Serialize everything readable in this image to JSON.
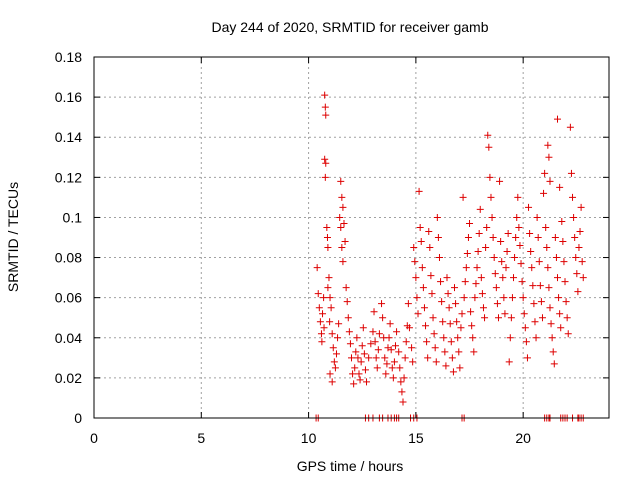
{
  "chart_data": {
    "type": "scatter",
    "title": "Day 244 of 2020, SRMTID for receiver gamb",
    "xlabel": "GPS time / hours",
    "ylabel": "SRMTID / TECUs",
    "xlim": [
      0,
      24
    ],
    "ylim": [
      0,
      0.18
    ],
    "grid": true,
    "marker": "+",
    "color": "#dd0000",
    "xticks": [
      0,
      5,
      10,
      15,
      20
    ],
    "xtick_labels": [
      "0",
      "5",
      "10",
      "15",
      "20"
    ],
    "yticks": [
      0,
      0.02,
      0.04,
      0.06,
      0.08,
      0.1,
      0.12,
      0.14,
      0.16,
      0.18
    ],
    "ytick_labels": [
      "0",
      "0.02",
      "0.04",
      "0.06",
      "0.08",
      "0.1",
      "0.12",
      "0.14",
      "0.16",
      "0.18"
    ],
    "series": [
      {
        "name": "SRMTID",
        "points": [
          [
            10.4,
            0.075
          ],
          [
            10.45,
            0.062
          ],
          [
            10.5,
            0.055
          ],
          [
            10.55,
            0.048
          ],
          [
            10.6,
            0.042
          ],
          [
            10.62,
            0.038
          ],
          [
            10.65,
            0.052
          ],
          [
            10.7,
            0.06
          ],
          [
            10.72,
            0.045
          ],
          [
            10.75,
            0.161
          ],
          [
            10.78,
            0.155
          ],
          [
            10.8,
            0.151
          ],
          [
            10.75,
            0.129
          ],
          [
            10.8,
            0.127
          ],
          [
            10.78,
            0.12
          ],
          [
            10.85,
            0.095
          ],
          [
            10.88,
            0.09
          ],
          [
            10.9,
            0.085
          ],
          [
            10.95,
            0.07
          ],
          [
            10.9,
            0.065
          ],
          [
            11.0,
            0.06
          ],
          [
            11.05,
            0.055
          ],
          [
            10.98,
            0.048
          ],
          [
            11.1,
            0.042
          ],
          [
            11.15,
            0.035
          ],
          [
            11.2,
            0.028
          ],
          [
            11.0,
            0.022
          ],
          [
            11.1,
            0.018
          ],
          [
            11.25,
            0.025
          ],
          [
            11.3,
            0.032
          ],
          [
            11.35,
            0.04
          ],
          [
            11.4,
            0.047
          ],
          [
            11.45,
            0.1
          ],
          [
            11.5,
            0.095
          ],
          [
            11.55,
            0.085
          ],
          [
            11.6,
            0.078
          ],
          [
            11.5,
            0.118
          ],
          [
            11.55,
            0.11
          ],
          [
            11.6,
            0.105
          ],
          [
            11.65,
            0.097
          ],
          [
            11.7,
            0.088
          ],
          [
            11.75,
            0.065
          ],
          [
            11.8,
            0.058
          ],
          [
            11.85,
            0.05
          ],
          [
            11.9,
            0.043
          ],
          [
            11.95,
            0.037
          ],
          [
            12.0,
            0.03
          ],
          [
            12.05,
            0.022
          ],
          [
            12.1,
            0.017
          ],
          [
            12.15,
            0.025
          ],
          [
            12.2,
            0.033
          ],
          [
            12.25,
            0.04
          ],
          [
            12.3,
            0.03
          ],
          [
            12.35,
            0.022
          ],
          [
            12.4,
            0.019
          ],
          [
            12.45,
            0.028
          ],
          [
            12.5,
            0.036
          ],
          [
            12.55,
            0.045
          ],
          [
            12.6,
            0.032
          ],
          [
            12.65,
            0.024
          ],
          [
            12.7,
            0.018
          ],
          [
            12.8,
            0.03
          ],
          [
            12.9,
            0.037
          ],
          [
            13.0,
            0.043
          ],
          [
            13.05,
            0.053
          ],
          [
            13.1,
            0.038
          ],
          [
            13.15,
            0.03
          ],
          [
            13.2,
            0.025
          ],
          [
            13.25,
            0.034
          ],
          [
            13.3,
            0.042
          ],
          [
            13.4,
            0.057
          ],
          [
            13.45,
            0.05
          ],
          [
            13.5,
            0.04
          ],
          [
            13.55,
            0.03
          ],
          [
            13.6,
            0.022
          ],
          [
            13.65,
            0.027
          ],
          [
            13.7,
            0.035
          ],
          [
            13.75,
            0.04
          ],
          [
            13.8,
            0.047
          ],
          [
            13.85,
            0.034
          ],
          [
            13.9,
            0.025
          ],
          [
            13.95,
            0.02
          ],
          [
            14.0,
            0.028
          ],
          [
            14.05,
            0.036
          ],
          [
            14.1,
            0.043
          ],
          [
            14.2,
            0.033
          ],
          [
            14.25,
            0.025
          ],
          [
            14.3,
            0.018
          ],
          [
            14.35,
            0.013
          ],
          [
            14.4,
            0.008
          ],
          [
            14.45,
            0.02
          ],
          [
            14.5,
            0.03
          ],
          [
            14.55,
            0.038
          ],
          [
            14.6,
            0.046
          ],
          [
            14.65,
            0.057
          ],
          [
            14.7,
            0.045
          ],
          [
            14.8,
            0.035
          ],
          [
            14.85,
            0.028
          ],
          [
            14.9,
            0.085
          ],
          [
            14.95,
            0.078
          ],
          [
            15.0,
            0.07
          ],
          [
            15.05,
            0.06
          ],
          [
            15.1,
            0.052
          ],
          [
            15.15,
            0.113
          ],
          [
            15.2,
            0.095
          ],
          [
            15.25,
            0.088
          ],
          [
            15.3,
            0.075
          ],
          [
            15.35,
            0.065
          ],
          [
            15.4,
            0.055
          ],
          [
            15.45,
            0.046
          ],
          [
            15.5,
            0.038
          ],
          [
            15.55,
            0.03
          ],
          [
            15.6,
            0.093
          ],
          [
            15.65,
            0.085
          ],
          [
            15.7,
            0.071
          ],
          [
            15.75,
            0.062
          ],
          [
            15.8,
            0.05
          ],
          [
            15.85,
            0.042
          ],
          [
            15.9,
            0.035
          ],
          [
            15.95,
            0.028
          ],
          [
            16.0,
            0.1
          ],
          [
            16.05,
            0.09
          ],
          [
            16.1,
            0.08
          ],
          [
            16.15,
            0.068
          ],
          [
            16.2,
            0.058
          ],
          [
            16.25,
            0.048
          ],
          [
            16.3,
            0.04
          ],
          [
            16.35,
            0.033
          ],
          [
            16.4,
            0.026
          ],
          [
            16.45,
            0.07
          ],
          [
            16.5,
            0.062
          ],
          [
            16.55,
            0.055
          ],
          [
            16.6,
            0.047
          ],
          [
            16.65,
            0.038
          ],
          [
            16.7,
            0.03
          ],
          [
            16.75,
            0.023
          ],
          [
            16.8,
            0.065
          ],
          [
            16.85,
            0.057
          ],
          [
            16.9,
            0.048
          ],
          [
            16.95,
            0.04
          ],
          [
            17.0,
            0.033
          ],
          [
            17.05,
            0.025
          ],
          [
            17.1,
            0.045
          ],
          [
            17.15,
            0.052
          ],
          [
            17.2,
            0.11
          ],
          [
            17.25,
            0.06
          ],
          [
            17.3,
            0.068
          ],
          [
            17.35,
            0.075
          ],
          [
            17.4,
            0.082
          ],
          [
            17.45,
            0.09
          ],
          [
            17.5,
            0.097
          ],
          [
            17.55,
            0.053
          ],
          [
            17.6,
            0.046
          ],
          [
            17.65,
            0.04
          ],
          [
            17.7,
            0.033
          ],
          [
            17.75,
            0.06
          ],
          [
            17.8,
            0.067
          ],
          [
            17.85,
            0.075
          ],
          [
            17.9,
            0.083
          ],
          [
            17.95,
            0.092
          ],
          [
            18.0,
            0.104
          ],
          [
            18.05,
            0.07
          ],
          [
            18.1,
            0.062
          ],
          [
            18.15,
            0.055
          ],
          [
            18.2,
            0.05
          ],
          [
            18.25,
            0.085
          ],
          [
            18.3,
            0.095
          ],
          [
            18.35,
            0.141
          ],
          [
            18.4,
            0.135
          ],
          [
            18.45,
            0.12
          ],
          [
            18.5,
            0.11
          ],
          [
            18.55,
            0.1
          ],
          [
            18.6,
            0.09
          ],
          [
            18.65,
            0.08
          ],
          [
            18.7,
            0.072
          ],
          [
            18.75,
            0.065
          ],
          [
            18.8,
            0.057
          ],
          [
            18.85,
            0.05
          ],
          [
            18.9,
            0.118
          ],
          [
            18.95,
            0.088
          ],
          [
            19.0,
            0.078
          ],
          [
            19.05,
            0.07
          ],
          [
            19.1,
            0.06
          ],
          [
            19.15,
            0.052
          ],
          [
            19.2,
            0.075
          ],
          [
            19.25,
            0.083
          ],
          [
            19.3,
            0.092
          ],
          [
            19.35,
            0.028
          ],
          [
            19.4,
            0.04
          ],
          [
            19.45,
            0.05
          ],
          [
            19.5,
            0.06
          ],
          [
            19.55,
            0.07
          ],
          [
            19.6,
            0.08
          ],
          [
            19.65,
            0.09
          ],
          [
            19.7,
            0.1
          ],
          [
            19.75,
            0.11
          ],
          [
            19.8,
            0.095
          ],
          [
            19.85,
            0.086
          ],
          [
            19.9,
            0.077
          ],
          [
            19.95,
            0.068
          ],
          [
            20.0,
            0.06
          ],
          [
            20.05,
            0.052
          ],
          [
            20.1,
            0.045
          ],
          [
            20.15,
            0.038
          ],
          [
            20.2,
            0.03
          ],
          [
            20.25,
            0.105
          ],
          [
            20.3,
            0.092
          ],
          [
            20.35,
            0.083
          ],
          [
            20.4,
            0.075
          ],
          [
            20.45,
            0.066
          ],
          [
            20.5,
            0.057
          ],
          [
            20.55,
            0.048
          ],
          [
            20.6,
            0.04
          ],
          [
            20.65,
            0.1
          ],
          [
            20.7,
            0.09
          ],
          [
            20.75,
            0.078
          ],
          [
            20.8,
            0.066
          ],
          [
            20.85,
            0.058
          ],
          [
            20.9,
            0.05
          ],
          [
            20.95,
            0.112
          ],
          [
            21.0,
            0.122
          ],
          [
            21.05,
            0.095
          ],
          [
            21.1,
            0.085
          ],
          [
            21.15,
            0.075
          ],
          [
            21.2,
            0.065
          ],
          [
            21.25,
            0.055
          ],
          [
            21.3,
            0.047
          ],
          [
            21.35,
            0.04
          ],
          [
            21.4,
            0.033
          ],
          [
            21.45,
            0.027
          ],
          [
            21.5,
            0.09
          ],
          [
            21.55,
            0.08
          ],
          [
            21.6,
            0.07
          ],
          [
            21.65,
            0.06
          ],
          [
            21.7,
            0.052
          ],
          [
            21.75,
            0.045
          ],
          [
            21.15,
            0.136
          ],
          [
            21.2,
            0.13
          ],
          [
            21.25,
            0.118
          ],
          [
            21.6,
            0.149
          ],
          [
            21.7,
            0.115
          ],
          [
            21.8,
            0.098
          ],
          [
            21.85,
            0.088
          ],
          [
            21.9,
            0.078
          ],
          [
            21.95,
            0.068
          ],
          [
            22.0,
            0.058
          ],
          [
            22.05,
            0.05
          ],
          [
            22.1,
            0.042
          ],
          [
            22.2,
            0.145
          ],
          [
            22.25,
            0.122
          ],
          [
            22.3,
            0.11
          ],
          [
            22.35,
            0.1
          ],
          [
            22.4,
            0.09
          ],
          [
            22.45,
            0.08
          ],
          [
            22.5,
            0.072
          ],
          [
            22.55,
            0.063
          ],
          [
            22.6,
            0.085
          ],
          [
            22.65,
            0.093
          ],
          [
            22.7,
            0.105
          ],
          [
            22.75,
            0.078
          ],
          [
            22.8,
            0.07
          ]
        ]
      }
    ],
    "zero_points_x": [
      10.35,
      10.45,
      12.65,
      12.8,
      13.0,
      13.3,
      13.45,
      13.7,
      13.85,
      14.0,
      14.1,
      14.2,
      14.75,
      14.9,
      15.05,
      17.15,
      17.25,
      21.0,
      21.1,
      21.2,
      21.25,
      21.75,
      21.85,
      21.95,
      22.05,
      22.3,
      22.55,
      22.6,
      22.7,
      22.8
    ]
  }
}
